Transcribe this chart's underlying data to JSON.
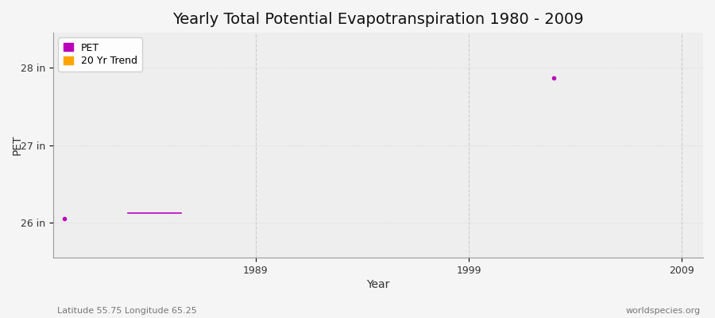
{
  "title": "Yearly Total Potential Evapotranspiration 1980 - 2009",
  "ylabel": "PET",
  "xlabel": "Year",
  "background_color": "#f5f5f5",
  "plot_bg_color": "#eeeeee",
  "ylim": [
    25.55,
    28.45
  ],
  "xlim": [
    1979.5,
    2010
  ],
  "yticks": [
    26,
    27,
    28
  ],
  "ytick_labels": [
    "26 in",
    "27 in",
    "28 in"
  ],
  "xticks": [
    1989,
    1999,
    2009
  ],
  "xtick_labels": [
    "1989",
    "1999",
    "2009"
  ],
  "pet_color": "#bb00bb",
  "trend_color": "#ffa500",
  "pet_dot_x": 1980,
  "pet_dot_y": 26.05,
  "pet_dot2_x": 2003,
  "pet_dot2_y": 27.87,
  "trend_x1": 1983,
  "trend_x2": 1985.5,
  "trend_y": 26.13,
  "subtitle_left": "Latitude 55.75 Longitude 65.25",
  "subtitle_right": "worldspecies.org",
  "grid_color": "#cccccc",
  "title_fontsize": 14,
  "axis_label_fontsize": 10,
  "tick_fontsize": 9,
  "legend_fontsize": 9
}
